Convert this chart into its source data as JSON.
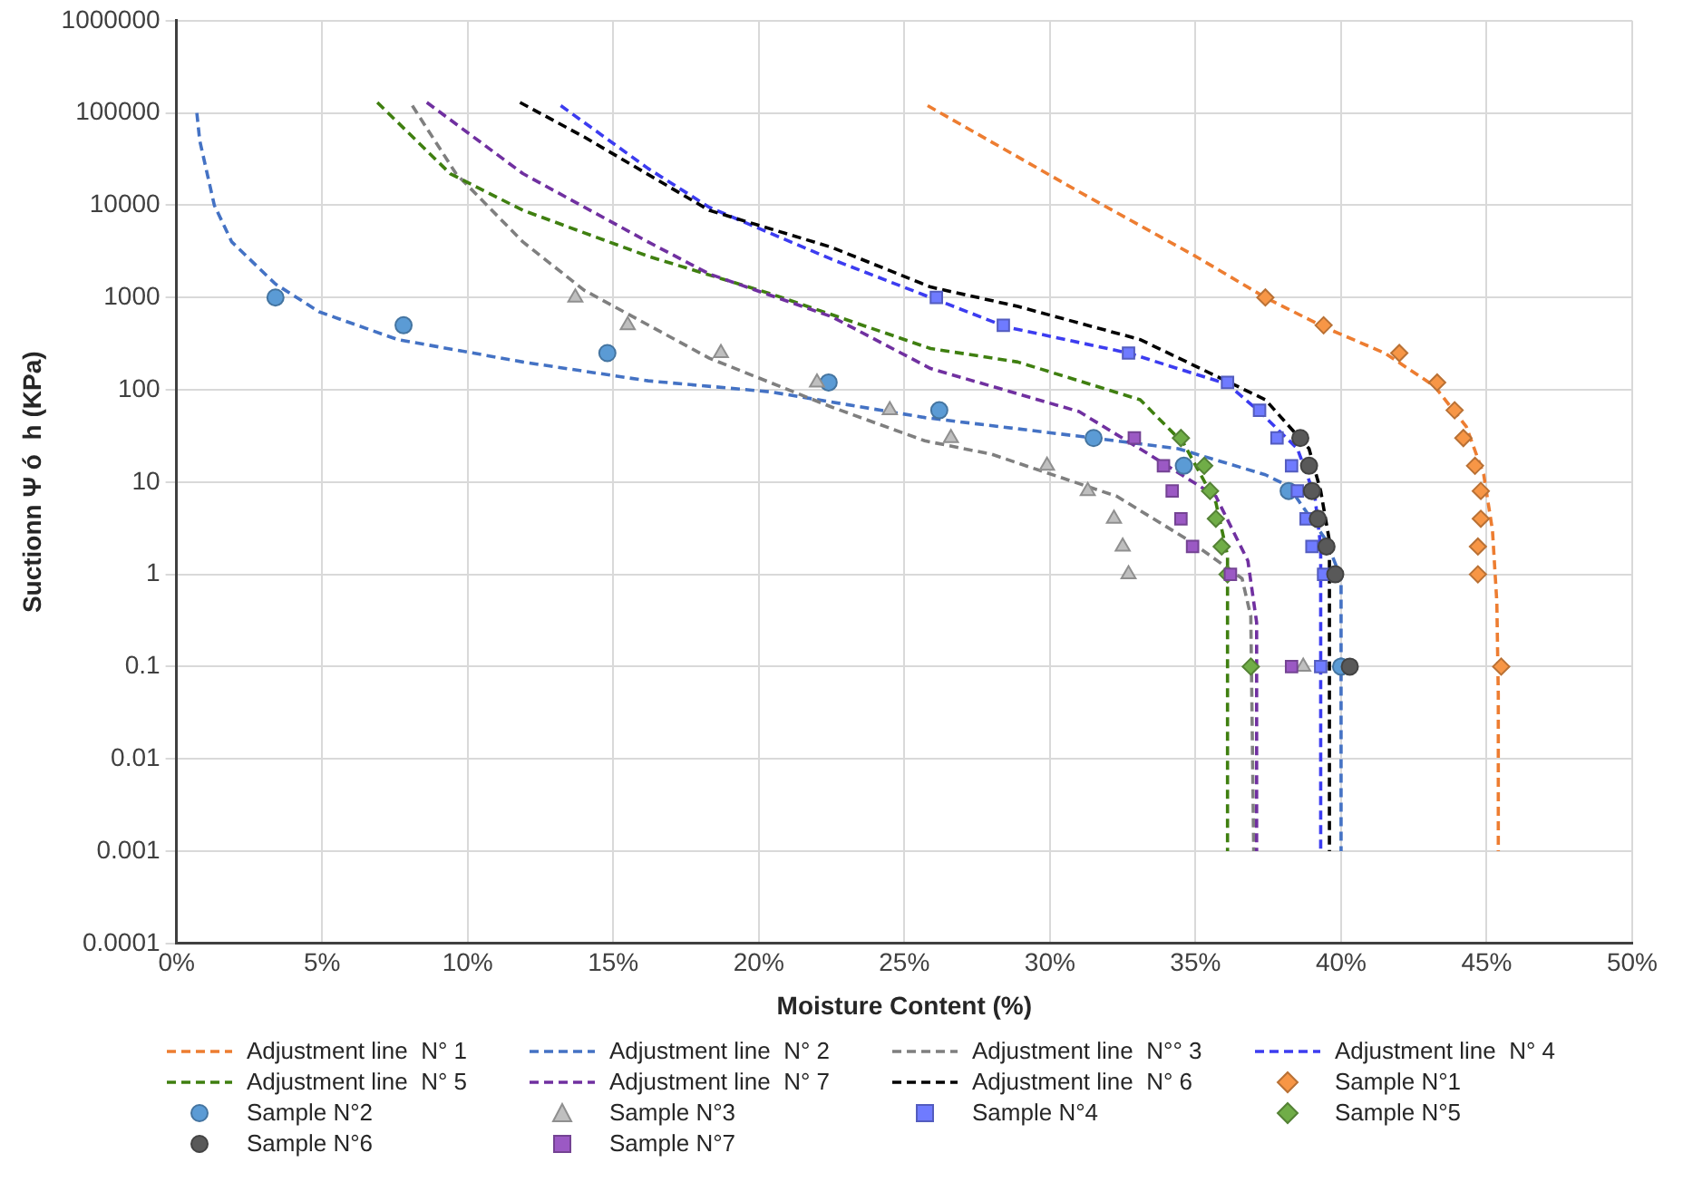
{
  "chart_data": {
    "type": "scatter",
    "xlabel": "Moisture Content (%)",
    "ylabel": "Suctionn Ψ ó  h (KPa)",
    "log": "y",
    "grid": true,
    "legend": "bottom",
    "xlim": [
      0,
      50
    ],
    "xticks": [
      {
        "value": 0,
        "label": "0%"
      },
      {
        "value": 5,
        "label": "5%"
      },
      {
        "value": 10,
        "label": "10%"
      },
      {
        "value": 15,
        "label": "15%"
      },
      {
        "value": 20,
        "label": "20%"
      },
      {
        "value": 25,
        "label": "25%"
      },
      {
        "value": 30,
        "label": "30%"
      },
      {
        "value": 35,
        "label": "35%"
      },
      {
        "value": 40,
        "label": "40%"
      },
      {
        "value": 45,
        "label": "45%"
      },
      {
        "value": 50,
        "label": "50%"
      }
    ],
    "ylim": [
      0.0001,
      1000000
    ],
    "yticks": [
      0.0001,
      0.001,
      0.01,
      0.1,
      1,
      10,
      100,
      1000,
      10000,
      100000,
      1000000
    ],
    "series": [
      {
        "name": "Adjustment line  N° 1",
        "type": "line",
        "line_style": "dashed",
        "marker": "none",
        "color": "#ed7d31",
        "x": [
          25.8,
          31.0,
          35.0,
          37.4,
          39.4,
          41.5,
          43.2,
          44.3,
          44.9,
          45.2,
          45.35,
          45.4,
          45.4
        ],
        "values": [
          120000,
          14000,
          2800,
          1000,
          480,
          250,
          110,
          40,
          12,
          3,
          0.5,
          0.05,
          0.001
        ]
      },
      {
        "name": "Adjustment line  N° 2",
        "type": "line",
        "line_style": "dashed",
        "marker": "none",
        "color": "#4472c4",
        "x": [
          0.7,
          0.8,
          1.3,
          1.9,
          3.4,
          4.9,
          7.6,
          11.9,
          16.2,
          20.4,
          25.7,
          31.5,
          34.4,
          37.4,
          38.2,
          39.5,
          40.0,
          40.0
        ],
        "values": [
          100000,
          50000,
          10000,
          4000,
          1400,
          700,
          350,
          200,
          125,
          95,
          50,
          30,
          23,
          12,
          9,
          2.3,
          0.9,
          0.001
        ]
      },
      {
        "name": "Adjustment line  N°° 3",
        "type": "line",
        "line_style": "dashed",
        "marker": "none",
        "color": "#7f7f7f",
        "x": [
          8.1,
          9.6,
          11.9,
          14.0,
          18.3,
          22.5,
          25.7,
          28.0,
          32.3,
          34.8,
          36.6,
          36.9,
          37.0
        ],
        "values": [
          120000,
          22000,
          4000,
          1200,
          220,
          65,
          28,
          20,
          7,
          2.3,
          0.9,
          0.35,
          0.001
        ]
      },
      {
        "name": "Adjustment line  N° 4",
        "type": "line",
        "line_style": "dashed",
        "marker": "none",
        "color": "#3c3cf0",
        "x": [
          13.2,
          16.2,
          18.3,
          22.5,
          25.9,
          28.5,
          32.7,
          36.1,
          37.2,
          38.5,
          39.1,
          39.3,
          39.3
        ],
        "values": [
          120000,
          25000,
          9500,
          2600,
          1000,
          480,
          250,
          115,
          58,
          23,
          7,
          2,
          0.001
        ]
      },
      {
        "name": "Adjustment line  N° 5",
        "type": "line",
        "line_style": "dashed",
        "marker": "none",
        "color": "#3f7f10",
        "x": [
          6.9,
          9.4,
          11.9,
          16.2,
          20.4,
          25.9,
          28.9,
          33.1,
          34.6,
          35.7,
          36.1,
          36.1
        ],
        "values": [
          130000,
          22000,
          8800,
          2800,
          1100,
          280,
          200,
          78,
          26,
          6,
          1.6,
          0.001
        ]
      },
      {
        "name": "Adjustment line  N° 7",
        "type": "line",
        "line_style": "dashed",
        "marker": "none",
        "color": "#7030a0",
        "x": [
          8.6,
          11.9,
          16.2,
          18.3,
          22.5,
          25.9,
          31.0,
          33.4,
          35.7,
          36.8,
          37.1,
          37.1
        ],
        "values": [
          130000,
          22000,
          4000,
          1800,
          620,
          170,
          58,
          20,
          7,
          1.4,
          0.3,
          0.001
        ]
      },
      {
        "name": "Adjustment line  N° 6",
        "type": "line",
        "line_style": "dashed",
        "marker": "none",
        "color": "#000000",
        "x": [
          11.8,
          14.0,
          18.3,
          22.5,
          25.9,
          28.9,
          33.1,
          37.4,
          38.9,
          39.3,
          39.6,
          39.6
        ],
        "values": [
          130000,
          55000,
          8800,
          3500,
          1300,
          800,
          350,
          78,
          23,
          8,
          2.3,
          0.001
        ]
      },
      {
        "name": "Sample N°1",
        "type": "scatter",
        "marker": "diamond",
        "color": "#f79646",
        "x": [
          37.4,
          39.4,
          42.0,
          43.3,
          43.9,
          44.2,
          44.6,
          44.8,
          44.8,
          44.7,
          44.7,
          45.5
        ],
        "values": [
          1000,
          500,
          250,
          120,
          60,
          30,
          15,
          8,
          4,
          2,
          1,
          0.1
        ]
      },
      {
        "name": "Sample N°2",
        "type": "scatter",
        "marker": "circle",
        "color": "#5b9bd5",
        "x": [
          3.4,
          7.8,
          14.8,
          22.4,
          26.2,
          31.5,
          34.6,
          38.2,
          40.0
        ],
        "values": [
          1000,
          500,
          250,
          120,
          60,
          30,
          15,
          8,
          0.1
        ]
      },
      {
        "name": "Sample N°3",
        "type": "scatter",
        "marker": "triangle",
        "color": "#bfbfbf",
        "x": [
          13.7,
          15.5,
          18.7,
          22.0,
          24.5,
          26.6,
          29.9,
          31.3,
          32.2,
          32.5,
          32.7,
          38.7
        ],
        "values": [
          1000,
          500,
          250,
          120,
          60,
          30,
          15,
          8,
          4,
          2,
          1,
          0.1
        ]
      },
      {
        "name": "Sample N°4",
        "type": "scatter",
        "marker": "square",
        "color": "#6f7bff",
        "x": [
          26.1,
          28.4,
          32.7,
          36.1,
          37.2,
          37.8,
          38.3,
          38.5,
          38.8,
          39.0,
          39.4,
          39.3
        ],
        "values": [
          1000,
          500,
          250,
          120,
          60,
          30,
          15,
          8,
          4,
          2,
          1,
          0.1
        ]
      },
      {
        "name": "Sample N°5",
        "type": "scatter",
        "marker": "diamond",
        "color": "#70ad47",
        "x": [
          34.5,
          35.3,
          35.5,
          35.7,
          35.9,
          36.1,
          36.9
        ],
        "values": [
          30,
          15,
          8,
          4,
          2,
          1,
          0.1
        ]
      },
      {
        "name": "Sample N°6",
        "type": "scatter",
        "marker": "circle",
        "color": "#595959",
        "x": [
          38.6,
          38.9,
          39.0,
          39.2,
          39.5,
          39.8,
          40.3
        ],
        "values": [
          30,
          15,
          8,
          4,
          2,
          1,
          0.1
        ]
      },
      {
        "name": "Sample N°7",
        "type": "scatter",
        "marker": "square",
        "color": "#9b59c4",
        "x": [
          32.9,
          33.9,
          34.2,
          34.5,
          34.9,
          36.2,
          38.3
        ],
        "values": [
          30,
          15,
          8,
          4,
          2,
          1,
          0.1
        ]
      }
    ]
  }
}
